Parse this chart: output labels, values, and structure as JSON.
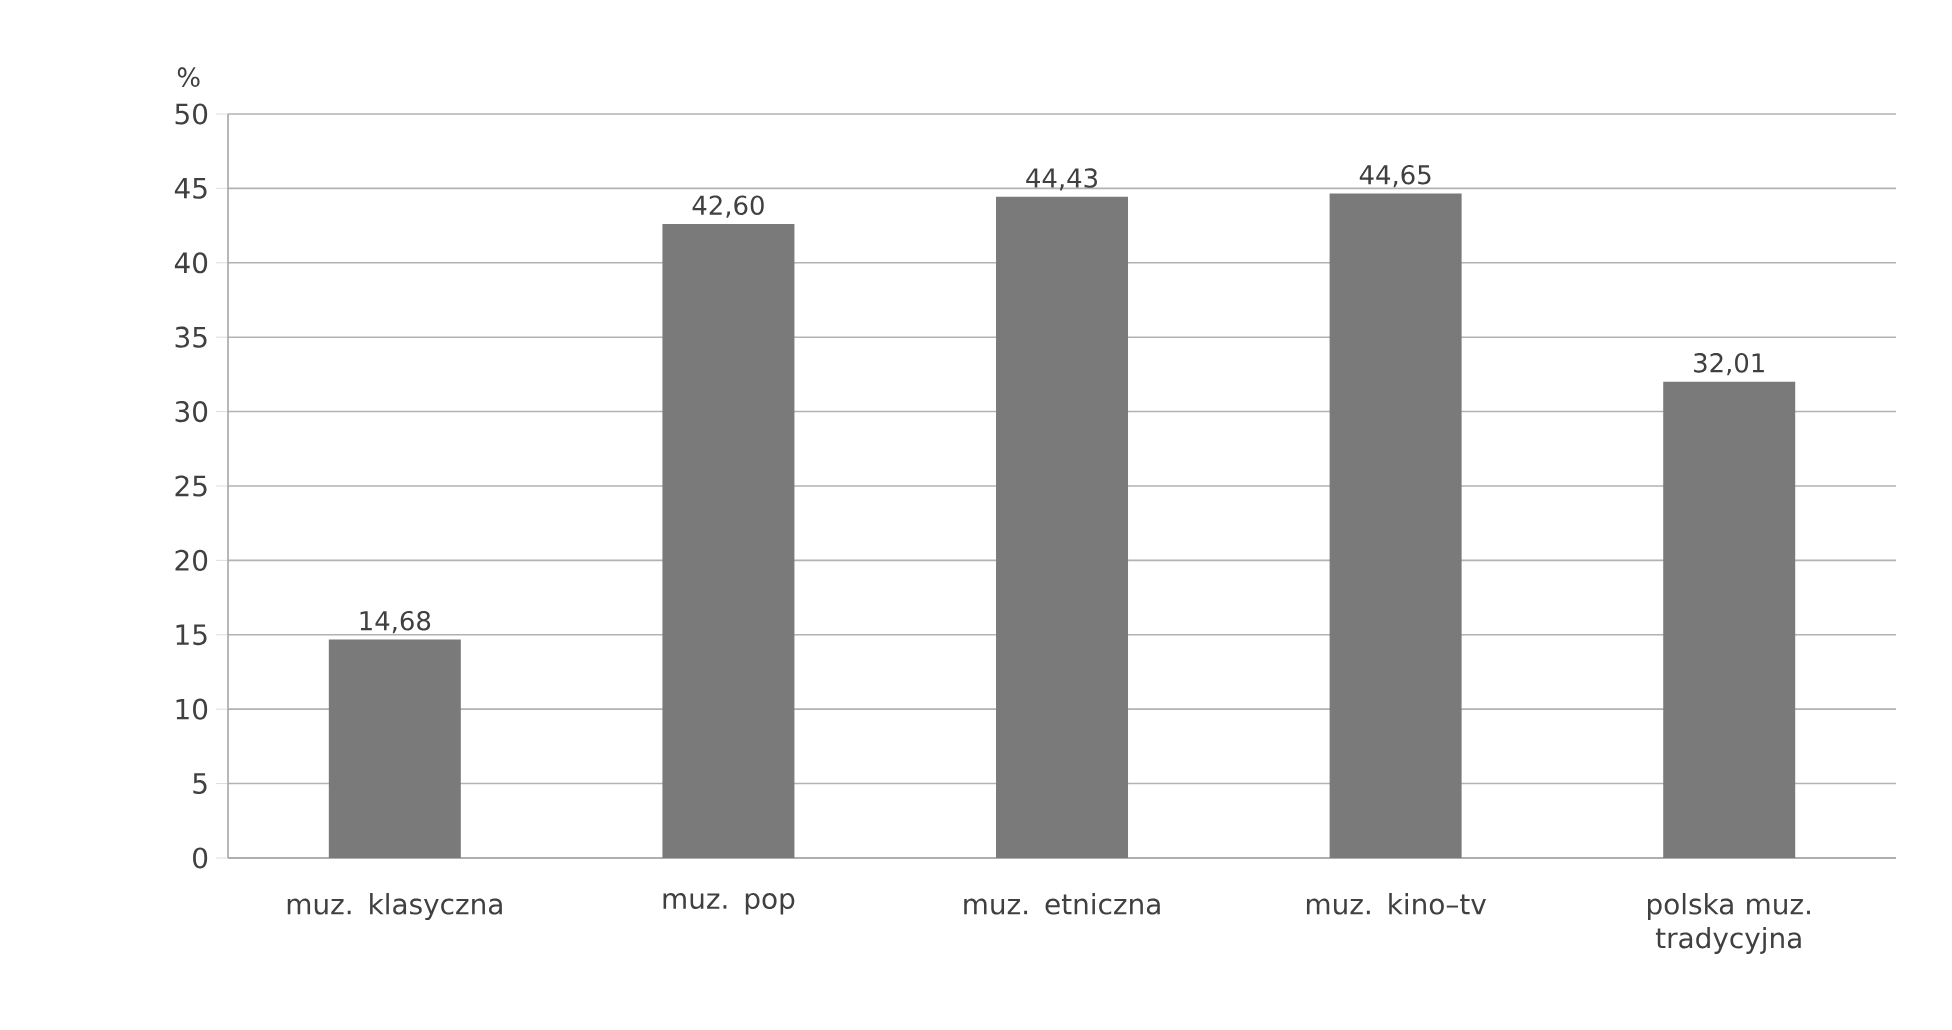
{
  "chart_data": {
    "type": "bar",
    "ylabel": "%",
    "categories": [
      "muz. klasyczna",
      "muz. pop",
      "muz. etniczna",
      "muz. kino–tv",
      "polska muz. tradycyjna"
    ],
    "values": [
      14.68,
      42.6,
      44.43,
      44.65,
      32.01
    ],
    "value_labels": [
      "14,68",
      "42,60",
      "44,43",
      "44,65",
      "32,01"
    ],
    "color": "#7a7a7a",
    "ylim": [
      0,
      50
    ],
    "yticks": [
      0,
      5,
      10,
      15,
      20,
      25,
      30,
      35,
      40,
      45,
      50
    ],
    "grid": "y"
  }
}
